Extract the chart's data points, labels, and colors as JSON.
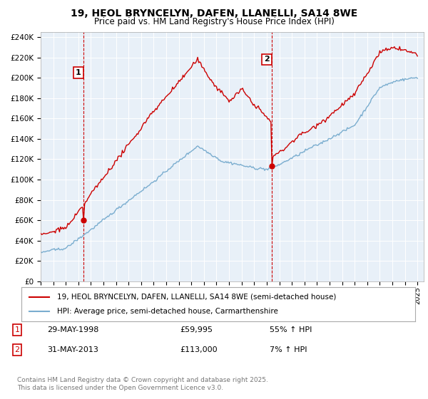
{
  "title_line1": "19, HEOL BRYNCELYN, DAFEN, LLANELLI, SA14 8WE",
  "title_line2": "Price paid vs. HM Land Registry's House Price Index (HPI)",
  "xlim_start": 1995.0,
  "xlim_end": 2025.5,
  "ylim_min": 0,
  "ylim_max": 245000,
  "yticks": [
    0,
    20000,
    40000,
    60000,
    80000,
    100000,
    120000,
    140000,
    160000,
    180000,
    200000,
    220000,
    240000
  ],
  "ytick_labels": [
    "£0",
    "£20K",
    "£40K",
    "£60K",
    "£80K",
    "£100K",
    "£120K",
    "£140K",
    "£160K",
    "£180K",
    "£200K",
    "£220K",
    "£240K"
  ],
  "price_paid_color": "#cc0000",
  "hpi_color": "#7aadcf",
  "annotation1_date": 1998.41,
  "annotation1_price": 59995,
  "annotation2_date": 2013.41,
  "annotation2_price": 113000,
  "vline_color": "#cc0000",
  "legend_label1": "19, HEOL BRYNCELYN, DAFEN, LLANELLI, SA14 8WE (semi-detached house)",
  "legend_label2": "HPI: Average price, semi-detached house, Carmarthenshire",
  "table_label1": "29-MAY-1998",
  "table_price1": "£59,995",
  "table_hpi1": "55% ↑ HPI",
  "table_label2": "31-MAY-2013",
  "table_price2": "£113,000",
  "table_hpi2": "7% ↑ HPI",
  "footer": "Contains HM Land Registry data © Crown copyright and database right 2025.\nThis data is licensed under the Open Government Licence v3.0.",
  "background_color": "#ffffff",
  "plot_bg_color": "#e8f0f8",
  "grid_color": "#ffffff"
}
